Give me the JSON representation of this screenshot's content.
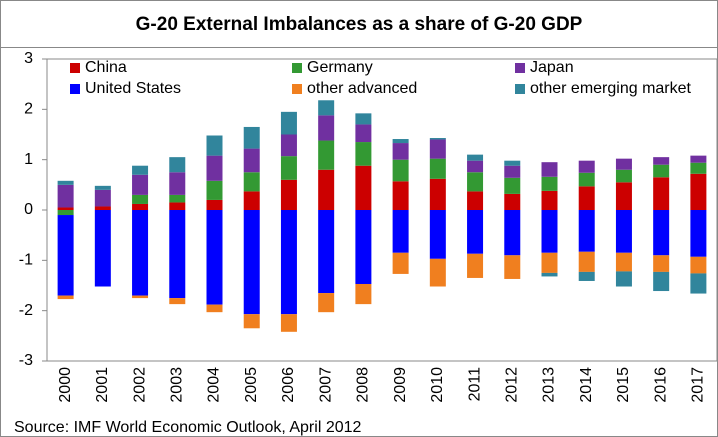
{
  "chart_data": {
    "type": "stacked_bar",
    "title": "G-20 External Imbalances as a share of G-20 GDP",
    "source": "Source:  IMF World Economic Outlook, April 2012",
    "categories": [
      "2000",
      "2001",
      "2002",
      "2003",
      "2004",
      "2005",
      "2006",
      "2007",
      "2008",
      "2009",
      "2010",
      "2011",
      "2012",
      "2013",
      "2014",
      "2015",
      "2016",
      "2017"
    ],
    "series": [
      {
        "name": "China",
        "color": "#cc0000",
        "values": [
          0.05,
          0.07,
          0.12,
          0.15,
          0.2,
          0.37,
          0.6,
          0.8,
          0.88,
          0.57,
          0.62,
          0.37,
          0.32,
          0.38,
          0.47,
          0.55,
          0.65,
          0.72
        ]
      },
      {
        "name": "Germany",
        "color": "#339933",
        "values": [
          -0.1,
          0,
          0.18,
          0.15,
          0.38,
          0.38,
          0.47,
          0.58,
          0.47,
          0.43,
          0.4,
          0.38,
          0.32,
          0.28,
          0.27,
          0.25,
          0.25,
          0.22
        ]
      },
      {
        "name": "Japan",
        "color": "#7030a0",
        "values": [
          0.45,
          0.33,
          0.4,
          0.45,
          0.5,
          0.47,
          0.43,
          0.5,
          0.35,
          0.33,
          0.38,
          0.23,
          0.24,
          0.29,
          0.24,
          0.22,
          0.15,
          0.14
        ]
      },
      {
        "name": "United States",
        "color": "#0000ff",
        "values": [
          -1.6,
          -1.52,
          -1.7,
          -1.75,
          -1.88,
          -2.07,
          -2.07,
          -1.65,
          -1.47,
          -0.85,
          -0.97,
          -0.87,
          -0.9,
          -0.85,
          -0.83,
          -0.85,
          -0.9,
          -0.93
        ]
      },
      {
        "name": "other advanced",
        "color": "#f07f1f",
        "values": [
          -0.07,
          0,
          -0.05,
          -0.12,
          -0.15,
          -0.28,
          -0.35,
          -0.38,
          -0.4,
          -0.42,
          -0.55,
          -0.48,
          -0.47,
          -0.4,
          -0.4,
          -0.37,
          -0.33,
          -0.33
        ]
      },
      {
        "name": "other emerging market",
        "color": "#31859c",
        "values": [
          0.08,
          0.08,
          0.18,
          0.3,
          0.4,
          0.43,
          0.45,
          0.3,
          0.22,
          0.08,
          0.03,
          0.12,
          0.1,
          -0.07,
          -0.18,
          -0.3,
          -0.38,
          -0.4
        ]
      }
    ],
    "ylim": [
      -3,
      3
    ],
    "yticks": [
      -3,
      -2,
      -1,
      0,
      1,
      2,
      3
    ],
    "legend": "top"
  }
}
